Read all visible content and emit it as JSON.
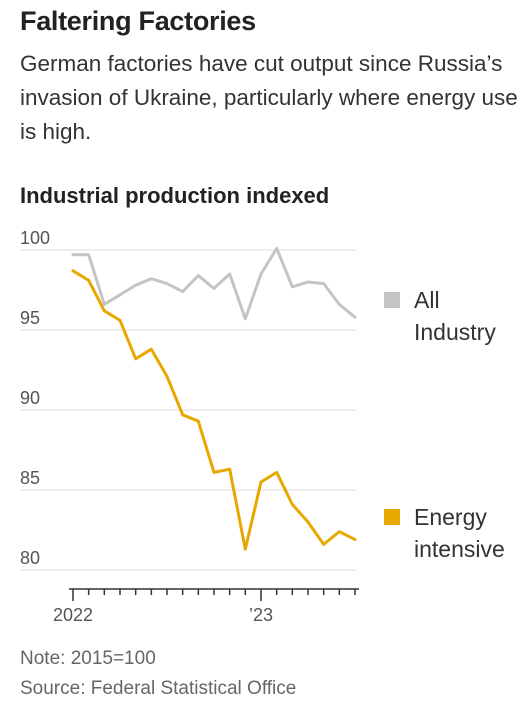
{
  "title": "Faltering Factories",
  "subtitle": "German factories have cut output since Russia’s invasion of Ukraine, particularly where energy use is high.",
  "chart_title": "Industrial production indexed",
  "note": "Note: 2015=100",
  "source": "Source: Federal Statistical Office",
  "colors": {
    "all_industry": "#c4c4c4",
    "energy_intensive": "#e8a800",
    "grid": "#dcdcdc",
    "axis": "#333333"
  },
  "chart_data": {
    "type": "line",
    "x": [
      "2022-01",
      "2022-02",
      "2022-03",
      "2022-04",
      "2022-05",
      "2022-06",
      "2022-07",
      "2022-08",
      "2022-09",
      "2022-10",
      "2022-11",
      "2022-12",
      "2023-01",
      "2023-02",
      "2023-03",
      "2023-04",
      "2023-05",
      "2023-06",
      "2023-07"
    ],
    "x_tick_labels": [
      {
        "at": "2022-01",
        "label": "2022"
      },
      {
        "at": "2023-01",
        "label": "’23"
      }
    ],
    "ylim": [
      79,
      101
    ],
    "y_ticks": [
      80,
      85,
      90,
      95,
      100
    ],
    "grid": true,
    "series": [
      {
        "name": "All Industry",
        "legend_lines": [
          "All",
          "Industry"
        ],
        "color": "#c4c4c4",
        "values": [
          99.7,
          99.7,
          96.6,
          97.2,
          97.8,
          98.2,
          97.9,
          97.4,
          98.4,
          97.6,
          98.5,
          95.7,
          98.5,
          100.1,
          97.7,
          98.0,
          97.9,
          96.6,
          95.8
        ]
      },
      {
        "name": "Energy intensive",
        "legend_lines": [
          "Energy",
          "intensive"
        ],
        "color": "#e8a800",
        "values": [
          98.7,
          98.1,
          96.2,
          95.6,
          93.2,
          93.8,
          92.1,
          89.7,
          89.3,
          86.1,
          86.3,
          81.3,
          85.5,
          86.1,
          84.1,
          83.0,
          81.6,
          82.4,
          81.9
        ]
      }
    ]
  }
}
